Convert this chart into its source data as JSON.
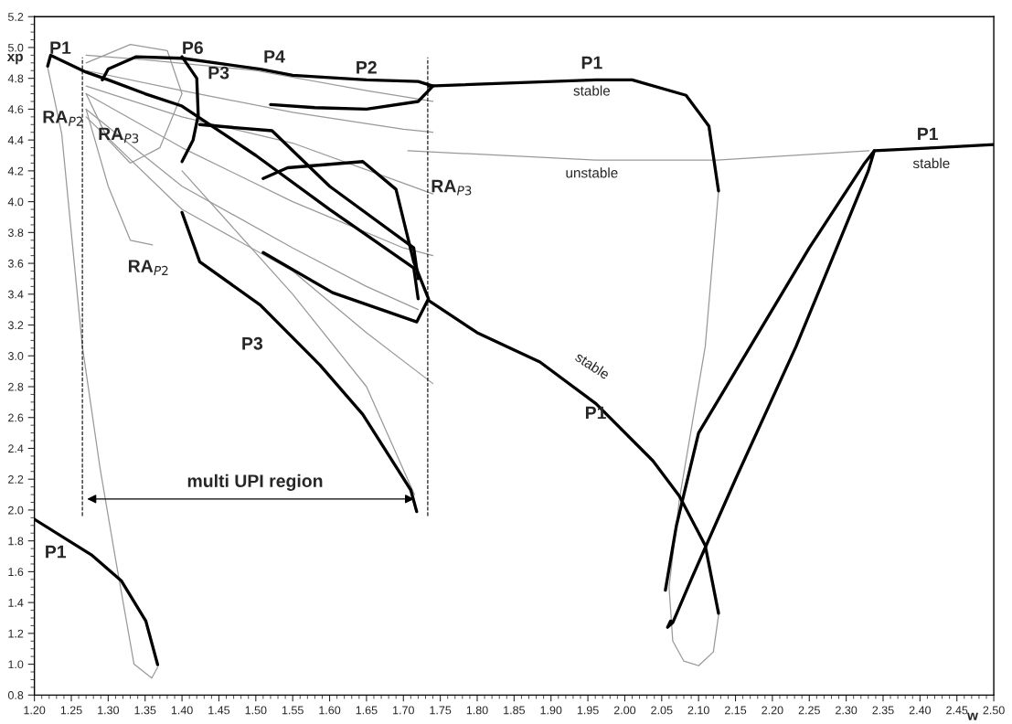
{
  "chart_data": {
    "type": "line",
    "xlabel": "w",
    "ylabel": "xp",
    "xlim": [
      1.2,
      2.5
    ],
    "ylim": [
      0.8,
      5.2
    ],
    "xticks": [
      {
        "value": 1.2,
        "label": "1.20"
      },
      {
        "value": 1.25,
        "label": "1.25"
      },
      {
        "value": 1.3,
        "label": "1.30"
      },
      {
        "value": 1.35,
        "label": "1.35"
      },
      {
        "value": 1.4,
        "label": "1.40"
      },
      {
        "value": 1.45,
        "label": "1.45"
      },
      {
        "value": 1.5,
        "label": "1.50"
      },
      {
        "value": 1.55,
        "label": "1.55"
      },
      {
        "value": 1.6,
        "label": "1.60"
      },
      {
        "value": 1.65,
        "label": "1.65"
      },
      {
        "value": 1.7,
        "label": "1.70"
      },
      {
        "value": 1.75,
        "label": "1.75"
      },
      {
        "value": 1.8,
        "label": "1.80"
      },
      {
        "value": 1.85,
        "label": "1.85"
      },
      {
        "value": 1.9,
        "label": "1.90"
      },
      {
        "value": 1.95,
        "label": "1.95"
      },
      {
        "value": 2.0,
        "label": "2.00"
      },
      {
        "value": 2.05,
        "label": "2.05"
      },
      {
        "value": 2.1,
        "label": "2.10"
      },
      {
        "value": 2.15,
        "label": "2.15"
      },
      {
        "value": 2.2,
        "label": "2.20"
      },
      {
        "value": 2.25,
        "label": "2.25"
      },
      {
        "value": 2.3,
        "label": "2.30"
      },
      {
        "value": 2.35,
        "label": "2.35"
      },
      {
        "value": 2.4,
        "label": "2.40"
      },
      {
        "value": 2.45,
        "label": "2.45"
      },
      {
        "value": 2.5,
        "label": "2.50"
      }
    ],
    "yticks": [
      0.8,
      {
        "value": 1.0,
        "label": "1.0"
      },
      1.2,
      1.4,
      1.6,
      1.8,
      {
        "value": 2.0,
        "label": "2.0"
      },
      2.2,
      2.4,
      2.6,
      2.8,
      {
        "value": 3.0,
        "label": "3.0"
      },
      3.2,
      3.4,
      3.6,
      3.8,
      {
        "value": 4.0,
        "label": "4.0"
      },
      4.2,
      4.4,
      4.6,
      4.8,
      {
        "value": 5.0,
        "label": "5.0"
      },
      5.2
    ],
    "grid": false,
    "series": [
      {
        "color": "#999999",
        "x": [
          1.27,
          1.35,
          1.5,
          1.65,
          1.74
        ],
        "values": [
          4.95,
          4.92,
          4.85,
          4.72,
          4.65
        ]
      },
      {
        "color": "#999999",
        "x": [
          1.27,
          1.4,
          1.55,
          1.7,
          1.74
        ],
        "values": [
          4.85,
          4.72,
          4.58,
          4.47,
          4.45
        ]
      },
      {
        "color": "#999999",
        "x": [
          1.27,
          1.4,
          1.55,
          1.7,
          1.74
        ],
        "values": [
          4.75,
          4.55,
          4.38,
          4.12,
          4.05
        ]
      },
      {
        "color": "#999999",
        "x": [
          1.27,
          1.4,
          1.55,
          1.7,
          1.74
        ],
        "values": [
          4.7,
          4.35,
          4.0,
          3.7,
          3.65
        ]
      },
      {
        "color": "#999999",
        "x": [
          1.27,
          1.4,
          1.55,
          1.65,
          1.72
        ],
        "values": [
          4.6,
          4.1,
          3.7,
          3.45,
          3.3
        ]
      },
      {
        "color": "#999999",
        "x": [
          1.27,
          1.4,
          1.55,
          1.65,
          1.74
        ],
        "values": [
          4.55,
          3.95,
          3.55,
          3.15,
          2.82
        ]
      },
      {
        "color": "#999999",
        "x": [
          1.27,
          1.3,
          1.33,
          1.36
        ],
        "values": [
          4.6,
          4.1,
          3.75,
          3.72
        ]
      },
      {
        "color": "#999999",
        "x": [
          1.27,
          1.33,
          1.38,
          1.4,
          1.37,
          1.33,
          1.3,
          1.27
        ],
        "values": [
          4.9,
          5.02,
          4.98,
          4.7,
          4.35,
          4.25,
          4.4,
          4.7
        ]
      },
      {
        "color": "#999999",
        "x": [
          1.4,
          1.55,
          1.65,
          1.715
        ],
        "values": [
          4.2,
          3.4,
          2.8,
          2.1
        ]
      },
      {
        "color": "#999999",
        "x": [
          1.218,
          1.237,
          1.25,
          1.265,
          1.289,
          1.31,
          1.335,
          1.359,
          1.367
        ],
        "values": [
          4.87,
          4.44,
          3.8,
          3.06,
          2.27,
          1.68,
          1.0,
          0.91,
          0.98
        ]
      },
      {
        "color": "#999999",
        "x": [
          1.706,
          1.961,
          2.125,
          2.331
        ],
        "values": [
          4.33,
          4.27,
          4.27,
          4.33
        ]
      },
      {
        "color": "#999999",
        "x": [
          2.127,
          2.109,
          2.074,
          2.06,
          2.065,
          2.08,
          2.1,
          2.12,
          2.128
        ],
        "values": [
          4.07,
          3.06,
          2.07,
          1.5,
          1.15,
          1.02,
          0.99,
          1.08,
          1.35
        ]
      },
      {
        "color": "#000000",
        "x": [
          1.218,
          1.222,
          1.235,
          1.27,
          1.3,
          1.35,
          1.4,
          1.5,
          1.6,
          1.714,
          1.72
        ],
        "values": [
          4.88,
          4.95,
          4.92,
          4.84,
          4.79,
          4.7,
          4.62,
          4.3,
          3.95,
          3.57,
          3.37
        ]
      },
      {
        "color": "#000000",
        "x": [
          1.292,
          1.3,
          1.338,
          1.4,
          1.506,
          1.55,
          1.65,
          1.72,
          1.74,
          1.72,
          1.65,
          1.58,
          1.52
        ],
        "values": [
          4.79,
          4.86,
          4.94,
          4.93,
          4.86,
          4.82,
          4.79,
          4.78,
          4.75,
          4.65,
          4.6,
          4.61,
          4.63
        ]
      },
      {
        "color": "#000000",
        "x": [
          1.4,
          1.42,
          1.422,
          1.415,
          1.4
        ],
        "values": [
          4.94,
          4.8,
          4.56,
          4.4,
          4.26
        ]
      },
      {
        "color": "#000000",
        "x": [
          1.424,
          1.522,
          1.6,
          1.714,
          1.72
        ],
        "values": [
          4.5,
          4.46,
          4.1,
          3.7,
          3.5
        ]
      },
      {
        "color": "#000000",
        "x": [
          1.51,
          1.604,
          1.718,
          1.734,
          1.714,
          1.69,
          1.645,
          1.543,
          1.51
        ],
        "values": [
          3.67,
          3.41,
          3.22,
          3.37,
          3.61,
          4.08,
          4.26,
          4.22,
          4.15
        ]
      },
      {
        "color": "#000000",
        "x": [
          1.4,
          1.424,
          1.506,
          1.587,
          1.645,
          1.71,
          1.718
        ],
        "values": [
          3.93,
          3.61,
          3.33,
          2.94,
          2.62,
          2.13,
          1.99
        ]
      },
      {
        "color": "#000000",
        "x": [
          1.734,
          1.961,
          2.01,
          2.083,
          2.114,
          2.127
        ],
        "values": [
          4.75,
          4.79,
          4.79,
          4.69,
          4.49,
          4.07
        ]
      },
      {
        "color": "#000000",
        "x": [
          1.734,
          1.8,
          1.885,
          1.961,
          2.038,
          2.074,
          2.109,
          2.127
        ],
        "values": [
          3.36,
          3.15,
          2.96,
          2.69,
          2.32,
          2.09,
          1.77,
          1.33
        ]
      },
      {
        "color": "#000000",
        "x": [
          2.055,
          2.07,
          2.1,
          2.17,
          2.25,
          2.325,
          2.338,
          2.33,
          2.27,
          2.232,
          2.15,
          2.09,
          2.065,
          2.058,
          2.062
        ],
        "values": [
          1.48,
          1.9,
          2.5,
          3.06,
          3.7,
          4.25,
          4.33,
          4.2,
          3.5,
          3.06,
          2.2,
          1.55,
          1.27,
          1.24,
          1.28
        ]
      },
      {
        "color": "#000000",
        "x": [
          2.338,
          2.42,
          2.5
        ],
        "values": [
          4.33,
          4.35,
          4.37
        ]
      },
      {
        "color": "#000000",
        "x": [
          1.2,
          1.277,
          1.318,
          1.351,
          1.367
        ],
        "values": [
          1.94,
          1.71,
          1.54,
          1.28,
          0.997
        ]
      }
    ],
    "ref_lines": [
      {
        "axis": "x",
        "value": 1.265,
        "line_style": "dashed"
      },
      {
        "axis": "x",
        "value": 1.733,
        "line_style": "dashed"
      }
    ],
    "annotations": [
      "P1",
      "P6",
      "P3",
      "P4",
      "P2",
      "RA$_{P2}$",
      "RA$_{P3}$",
      "RA$_{P3}$",
      "RA$_{P2}$",
      "P3",
      "P1",
      "multi UPI region",
      "P1",
      "stable",
      "unstable",
      "P1",
      "stable",
      "stable",
      "P1"
    ]
  }
}
